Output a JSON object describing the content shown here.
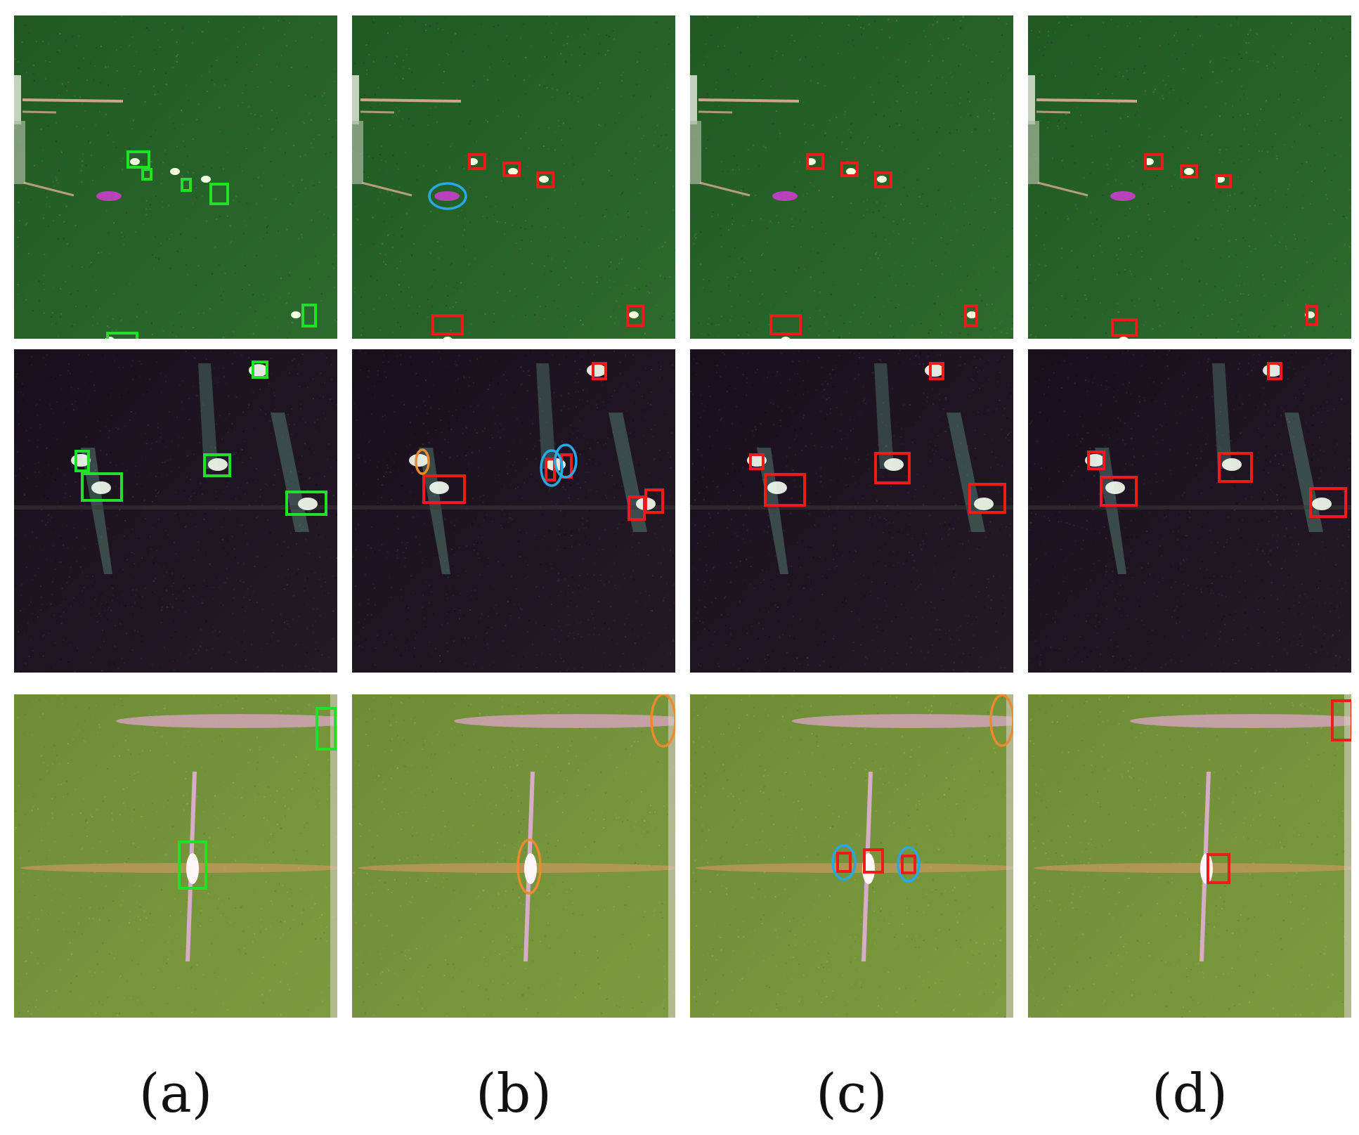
{
  "figure": {
    "column_labels": [
      "(a)",
      "(b)",
      "(c)",
      "(d)"
    ]
  },
  "colors": {
    "ground_truth_box": "#22e02a",
    "detection_box": "#ee1b1b",
    "false_alarm_marker": "#29a8e6",
    "missed_detection_marker": "#ee8a2e"
  },
  "rows": [
    {
      "scene": "sea-with-harbor",
      "background": [
        "#1f5a22",
        "#2d6a2e"
      ],
      "panels": [
        {
          "column": "a",
          "boxes": [
            {
              "color": "ground_truth_box",
              "count": 6
            }
          ],
          "ellipses": []
        },
        {
          "column": "b",
          "boxes": [
            {
              "color": "detection_box",
              "count": 5
            }
          ],
          "ellipses": [
            {
              "color": "false_alarm_marker",
              "count": 1
            }
          ]
        },
        {
          "column": "c",
          "boxes": [
            {
              "color": "detection_box",
              "count": 5
            }
          ],
          "ellipses": []
        },
        {
          "column": "d",
          "boxes": [
            {
              "color": "detection_box",
              "count": 5
            }
          ],
          "ellipses": []
        }
      ]
    },
    {
      "scene": "dark-sea-bright-ships",
      "background": [
        "#1a0f1c",
        "#241a26"
      ],
      "panels": [
        {
          "column": "a",
          "boxes": [
            {
              "color": "ground_truth_box",
              "count": 5
            }
          ],
          "ellipses": []
        },
        {
          "column": "b",
          "boxes": [
            {
              "color": "detection_box",
              "count": 6
            }
          ],
          "ellipses": [
            {
              "color": "missed_detection_marker",
              "count": 1
            },
            {
              "color": "false_alarm_marker",
              "count": 2
            }
          ]
        },
        {
          "column": "c",
          "boxes": [
            {
              "color": "detection_box",
              "count": 5
            }
          ],
          "ellipses": []
        },
        {
          "column": "d",
          "boxes": [
            {
              "color": "detection_box",
              "count": 5
            }
          ],
          "ellipses": []
        }
      ]
    },
    {
      "scene": "light-green-sea-cross-streaks",
      "background": [
        "#6e8c35",
        "#7c9a3e"
      ],
      "panels": [
        {
          "column": "a",
          "boxes": [
            {
              "color": "ground_truth_box",
              "count": 2
            }
          ],
          "ellipses": []
        },
        {
          "column": "b",
          "boxes": [],
          "ellipses": [
            {
              "color": "missed_detection_marker",
              "count": 2
            }
          ]
        },
        {
          "column": "c",
          "boxes": [
            {
              "color": "detection_box",
              "count": 3
            }
          ],
          "ellipses": [
            {
              "color": "missed_detection_marker",
              "count": 1
            },
            {
              "color": "false_alarm_marker",
              "count": 2
            }
          ]
        },
        {
          "column": "d",
          "boxes": [
            {
              "color": "detection_box",
              "count": 2
            }
          ],
          "ellipses": []
        }
      ]
    }
  ]
}
